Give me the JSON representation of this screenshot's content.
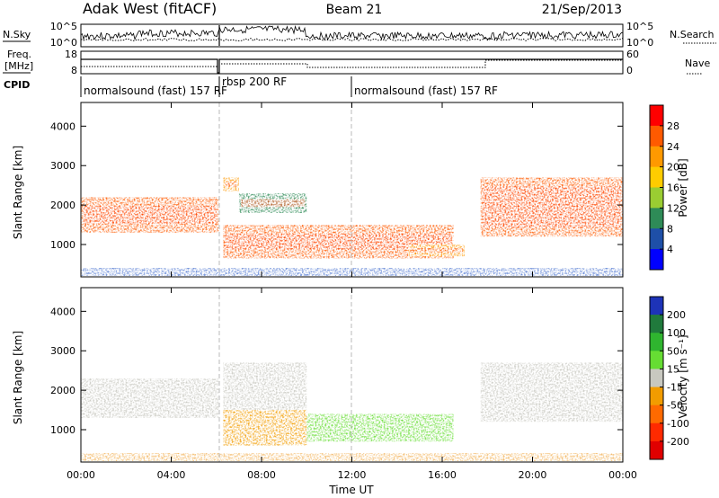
{
  "header": {
    "station": "Adak West (fitACF)",
    "beam": "Beam 21",
    "date": "21/Sep/2013"
  },
  "left_labels": {
    "nsky": "N.Sky",
    "freq_line1": "Freq.",
    "freq_line2": "[MHz]",
    "cpid": "CPID"
  },
  "right_labels": {
    "nsearch": "N.Search",
    "nave": "Nave"
  },
  "noise_panel": {
    "left_ticks": [
      "10^5",
      "10^0"
    ],
    "right_ticks": [
      "10^5",
      "10^0"
    ]
  },
  "freq_panel": {
    "left_ticks": [
      "18",
      "8"
    ],
    "right_ticks": [
      "60",
      "0"
    ]
  },
  "cpid_segments": [
    {
      "label": "normalsound (fast) 157 RF",
      "start_h": 0,
      "end_h": 6.1
    },
    {
      "label": "rbsp 200 RF",
      "start_h": 6.1,
      "end_h": 12.0
    },
    {
      "label": "normalsound (fast) 157 RF",
      "start_h": 12.0,
      "end_h": 24
    }
  ],
  "colorbars": {
    "power": {
      "label": "Power [dB]",
      "ticks": [
        "28",
        "24",
        "20",
        "16",
        "12",
        "8",
        "4"
      ],
      "colors": [
        "#ff0000",
        "#ff5a00",
        "#ff9900",
        "#ffcc00",
        "#9acd32",
        "#2e8b57",
        "#1e4fa8",
        "#0000ff"
      ]
    },
    "velocity": {
      "label": "Velocity [m s⁻¹]",
      "ticks": [
        "200",
        "100",
        "50",
        "15",
        "-15",
        "-50",
        "-100",
        "-200"
      ],
      "colors": [
        "#1d33b8",
        "#207a3c",
        "#2fb52f",
        "#66dd33",
        "#c8c8c0",
        "#f29c00",
        "#ff6a00",
        "#ff2a00",
        "#e00000"
      ]
    }
  },
  "chart_data": [
    {
      "type": "heatmap",
      "title": "Power",
      "xlabel": "Time UT",
      "ylabel": "Slant Range [km]",
      "x_ticks": [
        "00:00",
        "04:00",
        "08:00",
        "12:00",
        "16:00",
        "20:00",
        "00:00"
      ],
      "y_ticks": [
        "1000",
        "2000",
        "3000",
        "4000"
      ],
      "xlim_hours": [
        0,
        24
      ],
      "ylim_km": [
        180,
        4600
      ],
      "colorbar_range_db": [
        0,
        32
      ],
      "scatter_regions": [
        {
          "time_start_h": 0.0,
          "time_end_h": 6.1,
          "range_min_km": 1300,
          "range_max_km": 2200,
          "peak_db": 28
        },
        {
          "time_start_h": 6.3,
          "time_end_h": 7.0,
          "range_min_km": 2350,
          "range_max_km": 2700,
          "peak_db": 24
        },
        {
          "time_start_h": 7.0,
          "time_end_h": 10.0,
          "range_min_km": 1800,
          "range_max_km": 2300,
          "peak_db": 10
        },
        {
          "time_start_h": 6.3,
          "time_end_h": 16.5,
          "range_min_km": 650,
          "range_max_km": 1500,
          "peak_db": 26
        },
        {
          "time_start_h": 14.5,
          "time_end_h": 17.0,
          "range_min_km": 700,
          "range_max_km": 1000,
          "peak_db": 24
        },
        {
          "time_start_h": 17.7,
          "time_end_h": 24.0,
          "range_min_km": 1200,
          "range_max_km": 2700,
          "peak_db": 28
        }
      ]
    },
    {
      "type": "heatmap",
      "title": "Velocity",
      "xlabel": "Time UT",
      "ylabel": "Slant Range [km]",
      "x_ticks": [
        "00:00",
        "04:00",
        "08:00",
        "12:00",
        "16:00",
        "20:00",
        "00:00"
      ],
      "y_ticks": [
        "1000",
        "2000",
        "3000",
        "4000"
      ],
      "xlim_hours": [
        0,
        24
      ],
      "ylim_km": [
        180,
        4600
      ],
      "colorbar_range_ms": [
        -200,
        200
      ],
      "scatter_regions": [
        {
          "time_start_h": 0.0,
          "time_end_h": 6.1,
          "range_min_km": 1300,
          "range_max_km": 2300,
          "velocity_ms": 0
        },
        {
          "time_start_h": 6.3,
          "time_end_h": 10.0,
          "range_min_km": 1500,
          "range_max_km": 2700,
          "velocity_ms": 0
        },
        {
          "time_start_h": 6.3,
          "time_end_h": 10.0,
          "range_min_km": 600,
          "range_max_km": 1500,
          "velocity_ms": -40
        },
        {
          "time_start_h": 10.0,
          "time_end_h": 16.5,
          "range_min_km": 700,
          "range_max_km": 1400,
          "velocity_ms": 25
        },
        {
          "time_start_h": 17.7,
          "time_end_h": 24.0,
          "range_min_km": 1200,
          "range_max_km": 2700,
          "velocity_ms": 0
        }
      ]
    }
  ]
}
